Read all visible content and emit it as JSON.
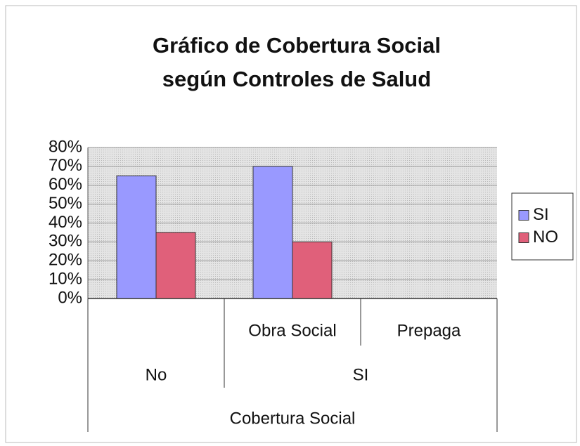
{
  "chart_data": {
    "type": "bar",
    "title": [
      "Gráfico de Cobertura Social",
      "según Controles de Salud"
    ],
    "categories": [
      null,
      "Obra Social",
      "Prepaga"
    ],
    "category_groups": [
      {
        "label": "No",
        "span": 1
      },
      {
        "label": "SI",
        "span": 2
      }
    ],
    "x_axis_label": "Cobertura Social",
    "series": [
      {
        "name": "SI",
        "color": "#9999ff",
        "values": [
          65,
          70,
          null
        ]
      },
      {
        "name": "NO",
        "color": "#e0607a",
        "values": [
          35,
          30,
          null
        ]
      }
    ],
    "ylim": [
      0,
      80
    ],
    "yticks": [
      {
        "value": 0,
        "label": "0%"
      },
      {
        "value": 10,
        "label": "10%"
      },
      {
        "value": 20,
        "label": "20%"
      },
      {
        "value": 30,
        "label": "30%"
      },
      {
        "value": 40,
        "label": "40%"
      },
      {
        "value": 50,
        "label": "50%"
      },
      {
        "value": 60,
        "label": "60%"
      },
      {
        "value": 70,
        "label": "70%"
      },
      {
        "value": 80,
        "label": "80%"
      }
    ],
    "grid": true,
    "legend": "right"
  }
}
